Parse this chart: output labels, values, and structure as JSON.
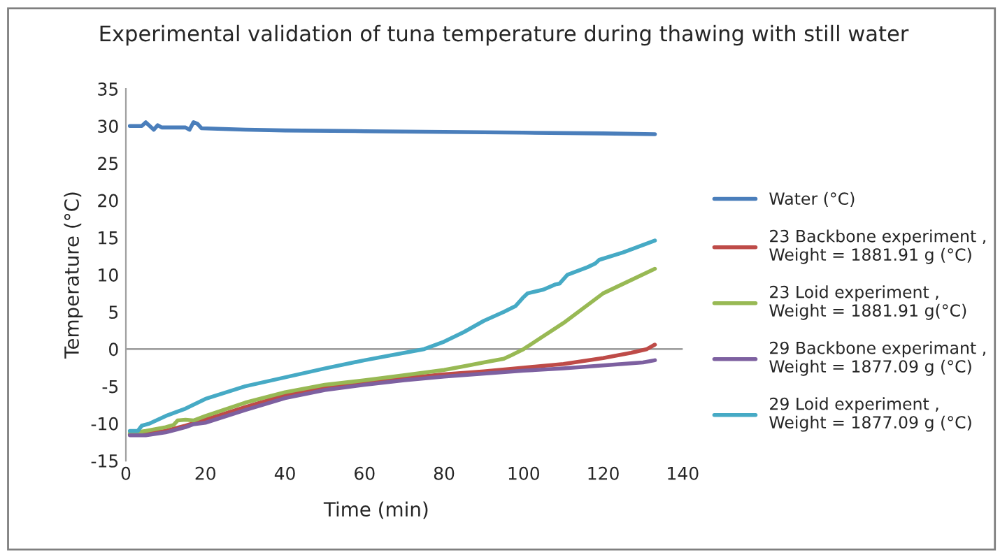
{
  "chart_data": {
    "type": "line",
    "title": "Experimental validation of tuna temperature during thawing with still water",
    "xlabel": "Time (min)",
    "ylabel": "Temperature (°C)",
    "xlim": [
      0,
      140
    ],
    "xticks": [
      0,
      20,
      40,
      60,
      80,
      100,
      120,
      140
    ],
    "ylim": [
      -15,
      35
    ],
    "yticks": [
      -15,
      -10,
      -5,
      0,
      5,
      10,
      15,
      20,
      25,
      30,
      35
    ],
    "grid": false,
    "ref_lines": [
      {
        "axis": "y",
        "value": 0,
        "color": "#a0a0a0"
      }
    ],
    "legend": "right",
    "marker": "none",
    "line_style": "solid",
    "series": [
      {
        "name": "Water (°C)",
        "color": "#4a7ebb",
        "x": [
          1,
          2,
          4,
          5,
          6,
          7,
          8,
          9,
          12,
          15,
          16,
          17,
          18,
          19,
          30,
          40,
          60,
          80,
          100,
          120,
          133
        ],
        "values": [
          30,
          30,
          30,
          30.5,
          30,
          29.5,
          30.1,
          29.8,
          29.8,
          29.8,
          29.5,
          30.5,
          30.3,
          29.7,
          29.5,
          29.4,
          29.3,
          29.2,
          29.1,
          29.0,
          28.9
        ]
      },
      {
        "name": "23 Backbone experiment ,\nWeight = 1881.91 g (°C)",
        "color": "#be4b48",
        "x": [
          1,
          5,
          10,
          15,
          20,
          30,
          40,
          50,
          60,
          70,
          80,
          90,
          100,
          110,
          120,
          127,
          131,
          133
        ],
        "values": [
          -11.5,
          -11.3,
          -11,
          -10.3,
          -9.5,
          -7.8,
          -6.2,
          -5.2,
          -4.5,
          -3.9,
          -3.4,
          -3,
          -2.5,
          -2,
          -1.2,
          -0.5,
          0,
          0.6
        ]
      },
      {
        "name": "23 Loid experiment ,\nWeight = 1881.91 g(°C)",
        "color": "#98b954",
        "x": [
          1,
          5,
          10,
          12,
          13,
          15,
          17,
          20,
          30,
          40,
          50,
          60,
          70,
          80,
          85,
          90,
          95,
          97,
          100,
          110,
          120,
          133
        ],
        "values": [
          -11.3,
          -11,
          -10.5,
          -10.2,
          -9.6,
          -9.5,
          -9.6,
          -9,
          -7.2,
          -5.8,
          -4.8,
          -4.2,
          -3.5,
          -2.8,
          -2.3,
          -1.8,
          -1.3,
          -0.8,
          0,
          3.5,
          7.5,
          10.8
        ]
      },
      {
        "name": "29 Backbone experimant ,\nWeight = 1877.09 g (°C)",
        "color": "#7d60a0",
        "x": [
          1,
          5,
          10,
          15,
          17,
          20,
          30,
          40,
          50,
          60,
          70,
          80,
          90,
          100,
          110,
          120,
          130,
          133
        ],
        "values": [
          -11.6,
          -11.6,
          -11.2,
          -10.5,
          -10.1,
          -9.9,
          -8.2,
          -6.6,
          -5.5,
          -4.8,
          -4.2,
          -3.7,
          -3.3,
          -2.9,
          -2.6,
          -2.2,
          -1.8,
          -1.5
        ]
      },
      {
        "name": "29 Loid experiment ,\nWeight = 1877.09 g (°C)",
        "color": "#46aac5",
        "x": [
          1,
          3,
          4,
          6,
          8,
          10,
          15,
          20,
          30,
          40,
          50,
          60,
          70,
          75,
          80,
          85,
          90,
          95,
          98,
          100,
          101,
          105,
          108,
          109,
          111,
          116,
          118,
          119,
          125,
          133
        ],
        "values": [
          -11,
          -11,
          -10.3,
          -10,
          -9.5,
          -9,
          -8,
          -6.7,
          -5,
          -3.8,
          -2.6,
          -1.5,
          -0.5,
          0,
          1,
          2.3,
          3.8,
          5,
          5.8,
          7,
          7.5,
          8,
          8.7,
          8.8,
          10,
          11,
          11.5,
          12,
          13,
          14.6
        ]
      }
    ]
  }
}
